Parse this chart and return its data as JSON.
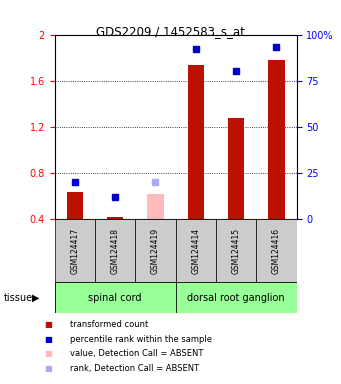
{
  "title": "GDS2209 / 1452583_s_at",
  "samples": [
    "GSM124417",
    "GSM124418",
    "GSM124419",
    "GSM124414",
    "GSM124415",
    "GSM124416"
  ],
  "red_values": [
    0.63,
    0.42,
    null,
    1.74,
    1.28,
    1.78
  ],
  "red_absent_values": [
    null,
    null,
    0.62,
    null,
    null,
    null
  ],
  "blue_pct": [
    20,
    12,
    null,
    92,
    80,
    93
  ],
  "blue_absent_pct": [
    null,
    null,
    20,
    null,
    null,
    null
  ],
  "ylim_left": [
    0.4,
    2.0
  ],
  "ylim_right": [
    0,
    100
  ],
  "yticks_left": [
    0.4,
    0.8,
    1.2,
    1.6,
    2.0
  ],
  "ytick_labels_left": [
    "0.4",
    "0.8",
    "1.2",
    "1.6",
    "2"
  ],
  "yticks_right": [
    0,
    25,
    50,
    75,
    100
  ],
  "ytick_labels_right": [
    "0",
    "25",
    "50",
    "75",
    "100%"
  ],
  "groups": [
    {
      "label": "spinal cord",
      "indices": [
        0,
        1,
        2
      ]
    },
    {
      "label": "dorsal root ganglion",
      "indices": [
        3,
        4,
        5
      ]
    }
  ],
  "tissue_label": "tissue",
  "red_color": "#bb1100",
  "red_absent_color": "#ffbbbb",
  "blue_color": "#0000cc",
  "blue_absent_color": "#aaaaee",
  "green_light": "#99ff99",
  "gray_bg": "#cccccc",
  "white_bg": "#ffffff",
  "grid_lines": [
    0.8,
    1.2,
    1.6
  ],
  "legend_items": [
    {
      "color": "#bb1100",
      "label": "transformed count"
    },
    {
      "color": "#0000cc",
      "label": "percentile rank within the sample"
    },
    {
      "color": "#ffbbbb",
      "label": "value, Detection Call = ABSENT"
    },
    {
      "color": "#aaaaee",
      "label": "rank, Detection Call = ABSENT"
    }
  ]
}
